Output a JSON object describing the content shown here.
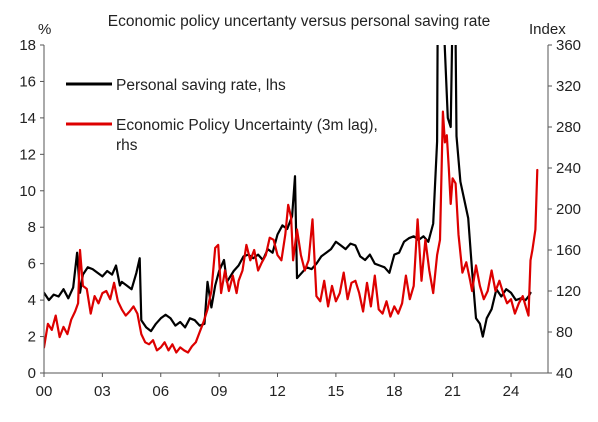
{
  "chart_data": {
    "type": "line",
    "title": "Economic policy uncertanty versus personal saving rate",
    "left_axis_unit": "%",
    "right_axis_unit": "Index",
    "ylim_left": [
      0,
      18
    ],
    "ylim_right": [
      40,
      360
    ],
    "yticks_left": [
      "0",
      "2",
      "4",
      "6",
      "8",
      "10",
      "12",
      "14",
      "16",
      "18"
    ],
    "yticks_right": [
      "40",
      "80",
      "120",
      "160",
      "200",
      "240",
      "280",
      "320",
      "360"
    ],
    "xlim": [
      2000,
      2025.9
    ],
    "xticks": [
      {
        "value": 2000,
        "label": "00"
      },
      {
        "value": 2003,
        "label": "03"
      },
      {
        "value": 2006,
        "label": "06"
      },
      {
        "value": 2009,
        "label": "09"
      },
      {
        "value": 2012,
        "label": "12"
      },
      {
        "value": 2015,
        "label": "15"
      },
      {
        "value": 2018,
        "label": "18"
      },
      {
        "value": 2021,
        "label": "21"
      },
      {
        "value": 2024,
        "label": "24"
      }
    ],
    "grid": false,
    "legend_position": "top-left",
    "series": [
      {
        "name": "Personal saving rate, lhs",
        "axis": "left",
        "color": "#000000",
        "points": [
          [
            2000.0,
            4.4
          ],
          [
            2000.25,
            4.0
          ],
          [
            2000.5,
            4.3
          ],
          [
            2000.75,
            4.2
          ],
          [
            2001.0,
            4.6
          ],
          [
            2001.25,
            4.1
          ],
          [
            2001.5,
            4.7
          ],
          [
            2001.7,
            6.6
          ],
          [
            2001.85,
            4.4
          ],
          [
            2002.0,
            5.4
          ],
          [
            2002.25,
            5.8
          ],
          [
            2002.5,
            5.7
          ],
          [
            2002.75,
            5.5
          ],
          [
            2003.0,
            5.3
          ],
          [
            2003.25,
            5.6
          ],
          [
            2003.5,
            5.4
          ],
          [
            2003.7,
            5.9
          ],
          [
            2003.9,
            4.8
          ],
          [
            2004.0,
            5.0
          ],
          [
            2004.25,
            4.8
          ],
          [
            2004.5,
            4.6
          ],
          [
            2004.75,
            5.5
          ],
          [
            2004.92,
            6.3
          ],
          [
            2005.0,
            2.9
          ],
          [
            2005.25,
            2.5
          ],
          [
            2005.5,
            2.3
          ],
          [
            2005.75,
            2.7
          ],
          [
            2006.0,
            3.0
          ],
          [
            2006.25,
            3.2
          ],
          [
            2006.5,
            3.0
          ],
          [
            2006.75,
            2.6
          ],
          [
            2007.0,
            2.8
          ],
          [
            2007.25,
            2.5
          ],
          [
            2007.5,
            3.0
          ],
          [
            2007.75,
            2.9
          ],
          [
            2008.0,
            2.6
          ],
          [
            2008.25,
            2.7
          ],
          [
            2008.4,
            5.0
          ],
          [
            2008.6,
            3.6
          ],
          [
            2008.8,
            4.8
          ],
          [
            2009.0,
            5.6
          ],
          [
            2009.25,
            6.2
          ],
          [
            2009.4,
            5.0
          ],
          [
            2009.75,
            5.6
          ],
          [
            2010.0,
            5.9
          ],
          [
            2010.25,
            6.4
          ],
          [
            2010.5,
            6.5
          ],
          [
            2010.75,
            6.3
          ],
          [
            2011.0,
            6.5
          ],
          [
            2011.25,
            6.2
          ],
          [
            2011.5,
            6.8
          ],
          [
            2011.75,
            6.6
          ],
          [
            2012.0,
            7.6
          ],
          [
            2012.25,
            8.1
          ],
          [
            2012.5,
            7.9
          ],
          [
            2012.75,
            8.6
          ],
          [
            2012.9,
            10.8
          ],
          [
            2013.0,
            5.2
          ],
          [
            2013.25,
            5.5
          ],
          [
            2013.5,
            5.8
          ],
          [
            2013.75,
            5.7
          ],
          [
            2014.0,
            6.0
          ],
          [
            2014.25,
            6.4
          ],
          [
            2014.5,
            6.6
          ],
          [
            2014.75,
            6.8
          ],
          [
            2015.0,
            7.2
          ],
          [
            2015.25,
            7.0
          ],
          [
            2015.5,
            6.8
          ],
          [
            2015.75,
            7.1
          ],
          [
            2016.0,
            7.0
          ],
          [
            2016.25,
            6.4
          ],
          [
            2016.5,
            6.2
          ],
          [
            2016.75,
            6.5
          ],
          [
            2017.0,
            6.0
          ],
          [
            2017.25,
            5.9
          ],
          [
            2017.5,
            5.8
          ],
          [
            2017.75,
            5.5
          ],
          [
            2018.0,
            6.5
          ],
          [
            2018.25,
            6.6
          ],
          [
            2018.5,
            7.2
          ],
          [
            2018.75,
            7.4
          ],
          [
            2019.0,
            7.5
          ],
          [
            2019.25,
            7.3
          ],
          [
            2019.5,
            7.5
          ],
          [
            2019.75,
            7.2
          ],
          [
            2020.0,
            8.2
          ],
          [
            2020.2,
            12.7
          ],
          [
            2020.3,
            33.8
          ],
          [
            2020.4,
            24.0
          ],
          [
            2020.55,
            19.0
          ],
          [
            2020.75,
            14.0
          ],
          [
            2020.9,
            13.5
          ],
          [
            2021.0,
            19.9
          ],
          [
            2021.08,
            26.6
          ],
          [
            2021.2,
            13.0
          ],
          [
            2021.4,
            10.5
          ],
          [
            2021.6,
            9.5
          ],
          [
            2021.8,
            8.5
          ],
          [
            2022.0,
            5.6
          ],
          [
            2022.2,
            3.0
          ],
          [
            2022.4,
            2.7
          ],
          [
            2022.55,
            2.0
          ],
          [
            2022.75,
            3.0
          ],
          [
            2023.0,
            3.5
          ],
          [
            2023.25,
            4.6
          ],
          [
            2023.5,
            4.2
          ],
          [
            2023.75,
            4.6
          ],
          [
            2024.0,
            4.4
          ],
          [
            2024.25,
            4.0
          ],
          [
            2024.5,
            4.1
          ],
          [
            2024.75,
            4.0
          ],
          [
            2024.9,
            4.2
          ],
          [
            2025.0,
            4.4
          ]
        ]
      },
      {
        "name": "Economic Policy Uncertainty (3m lag), rhs",
        "axis": "right",
        "color": "#dd0000",
        "points": [
          [
            2000.0,
            65
          ],
          [
            2000.2,
            88
          ],
          [
            2000.4,
            82
          ],
          [
            2000.6,
            96
          ],
          [
            2000.8,
            75
          ],
          [
            2001.0,
            85
          ],
          [
            2001.2,
            78
          ],
          [
            2001.4,
            92
          ],
          [
            2001.6,
            100
          ],
          [
            2001.75,
            108
          ],
          [
            2001.85,
            160
          ],
          [
            2002.0,
            125
          ],
          [
            2002.2,
            122
          ],
          [
            2002.4,
            98
          ],
          [
            2002.6,
            115
          ],
          [
            2002.8,
            108
          ],
          [
            2003.0,
            118
          ],
          [
            2003.2,
            120
          ],
          [
            2003.4,
            112
          ],
          [
            2003.6,
            128
          ],
          [
            2003.8,
            110
          ],
          [
            2004.0,
            102
          ],
          [
            2004.2,
            96
          ],
          [
            2004.4,
            100
          ],
          [
            2004.6,
            105
          ],
          [
            2004.8,
            98
          ],
          [
            2005.0,
            78
          ],
          [
            2005.2,
            70
          ],
          [
            2005.4,
            68
          ],
          [
            2005.6,
            72
          ],
          [
            2005.8,
            62
          ],
          [
            2006.0,
            65
          ],
          [
            2006.2,
            70
          ],
          [
            2006.4,
            62
          ],
          [
            2006.6,
            68
          ],
          [
            2006.8,
            60
          ],
          [
            2007.0,
            65
          ],
          [
            2007.2,
            62
          ],
          [
            2007.4,
            60
          ],
          [
            2007.6,
            66
          ],
          [
            2007.8,
            70
          ],
          [
            2008.0,
            80
          ],
          [
            2008.2,
            90
          ],
          [
            2008.4,
            102
          ],
          [
            2008.6,
            120
          ],
          [
            2008.8,
            162
          ],
          [
            2008.95,
            165
          ],
          [
            2009.1,
            118
          ],
          [
            2009.3,
            140
          ],
          [
            2009.5,
            120
          ],
          [
            2009.7,
            135
          ],
          [
            2009.9,
            118
          ],
          [
            2010.0,
            130
          ],
          [
            2010.2,
            140
          ],
          [
            2010.4,
            165
          ],
          [
            2010.6,
            150
          ],
          [
            2010.8,
            160
          ],
          [
            2011.0,
            140
          ],
          [
            2011.2,
            148
          ],
          [
            2011.4,
            155
          ],
          [
            2011.6,
            172
          ],
          [
            2011.8,
            170
          ],
          [
            2012.0,
            155
          ],
          [
            2012.2,
            150
          ],
          [
            2012.4,
            175
          ],
          [
            2012.55,
            204
          ],
          [
            2012.7,
            192
          ],
          [
            2012.8,
            150
          ],
          [
            2013.0,
            180
          ],
          [
            2013.2,
            155
          ],
          [
            2013.4,
            140
          ],
          [
            2013.6,
            150
          ],
          [
            2013.8,
            190
          ],
          [
            2014.0,
            115
          ],
          [
            2014.2,
            110
          ],
          [
            2014.4,
            130
          ],
          [
            2014.6,
            105
          ],
          [
            2014.8,
            125
          ],
          [
            2015.0,
            110
          ],
          [
            2015.2,
            118
          ],
          [
            2015.4,
            138
          ],
          [
            2015.6,
            112
          ],
          [
            2015.8,
            128
          ],
          [
            2016.0,
            130
          ],
          [
            2016.2,
            118
          ],
          [
            2016.4,
            100
          ],
          [
            2016.6,
            128
          ],
          [
            2016.8,
            105
          ],
          [
            2017.0,
            135
          ],
          [
            2017.2,
            102
          ],
          [
            2017.4,
            98
          ],
          [
            2017.6,
            110
          ],
          [
            2017.8,
            95
          ],
          [
            2018.0,
            105
          ],
          [
            2018.2,
            98
          ],
          [
            2018.4,
            108
          ],
          [
            2018.6,
            135
          ],
          [
            2018.8,
            112
          ],
          [
            2019.0,
            125
          ],
          [
            2019.2,
            190
          ],
          [
            2019.4,
            130
          ],
          [
            2019.6,
            170
          ],
          [
            2019.8,
            140
          ],
          [
            2020.0,
            118
          ],
          [
            2020.2,
            155
          ],
          [
            2020.35,
            170
          ],
          [
            2020.5,
            295
          ],
          [
            2020.6,
            265
          ],
          [
            2020.7,
            272
          ],
          [
            2020.8,
            240
          ],
          [
            2020.9,
            205
          ],
          [
            2021.0,
            230
          ],
          [
            2021.15,
            225
          ],
          [
            2021.3,
            175
          ],
          [
            2021.5,
            138
          ],
          [
            2021.7,
            148
          ],
          [
            2021.9,
            130
          ],
          [
            2022.0,
            120
          ],
          [
            2022.2,
            145
          ],
          [
            2022.4,
            125
          ],
          [
            2022.6,
            112
          ],
          [
            2022.8,
            120
          ],
          [
            2023.0,
            140
          ],
          [
            2023.2,
            120
          ],
          [
            2023.4,
            130
          ],
          [
            2023.6,
            118
          ],
          [
            2023.8,
            108
          ],
          [
            2024.0,
            112
          ],
          [
            2024.2,
            98
          ],
          [
            2024.4,
            108
          ],
          [
            2024.6,
            115
          ],
          [
            2024.8,
            102
          ],
          [
            2024.9,
            96
          ],
          [
            2025.0,
            150
          ],
          [
            2025.1,
            160
          ],
          [
            2025.25,
            180
          ],
          [
            2025.35,
            238
          ]
        ]
      }
    ]
  }
}
